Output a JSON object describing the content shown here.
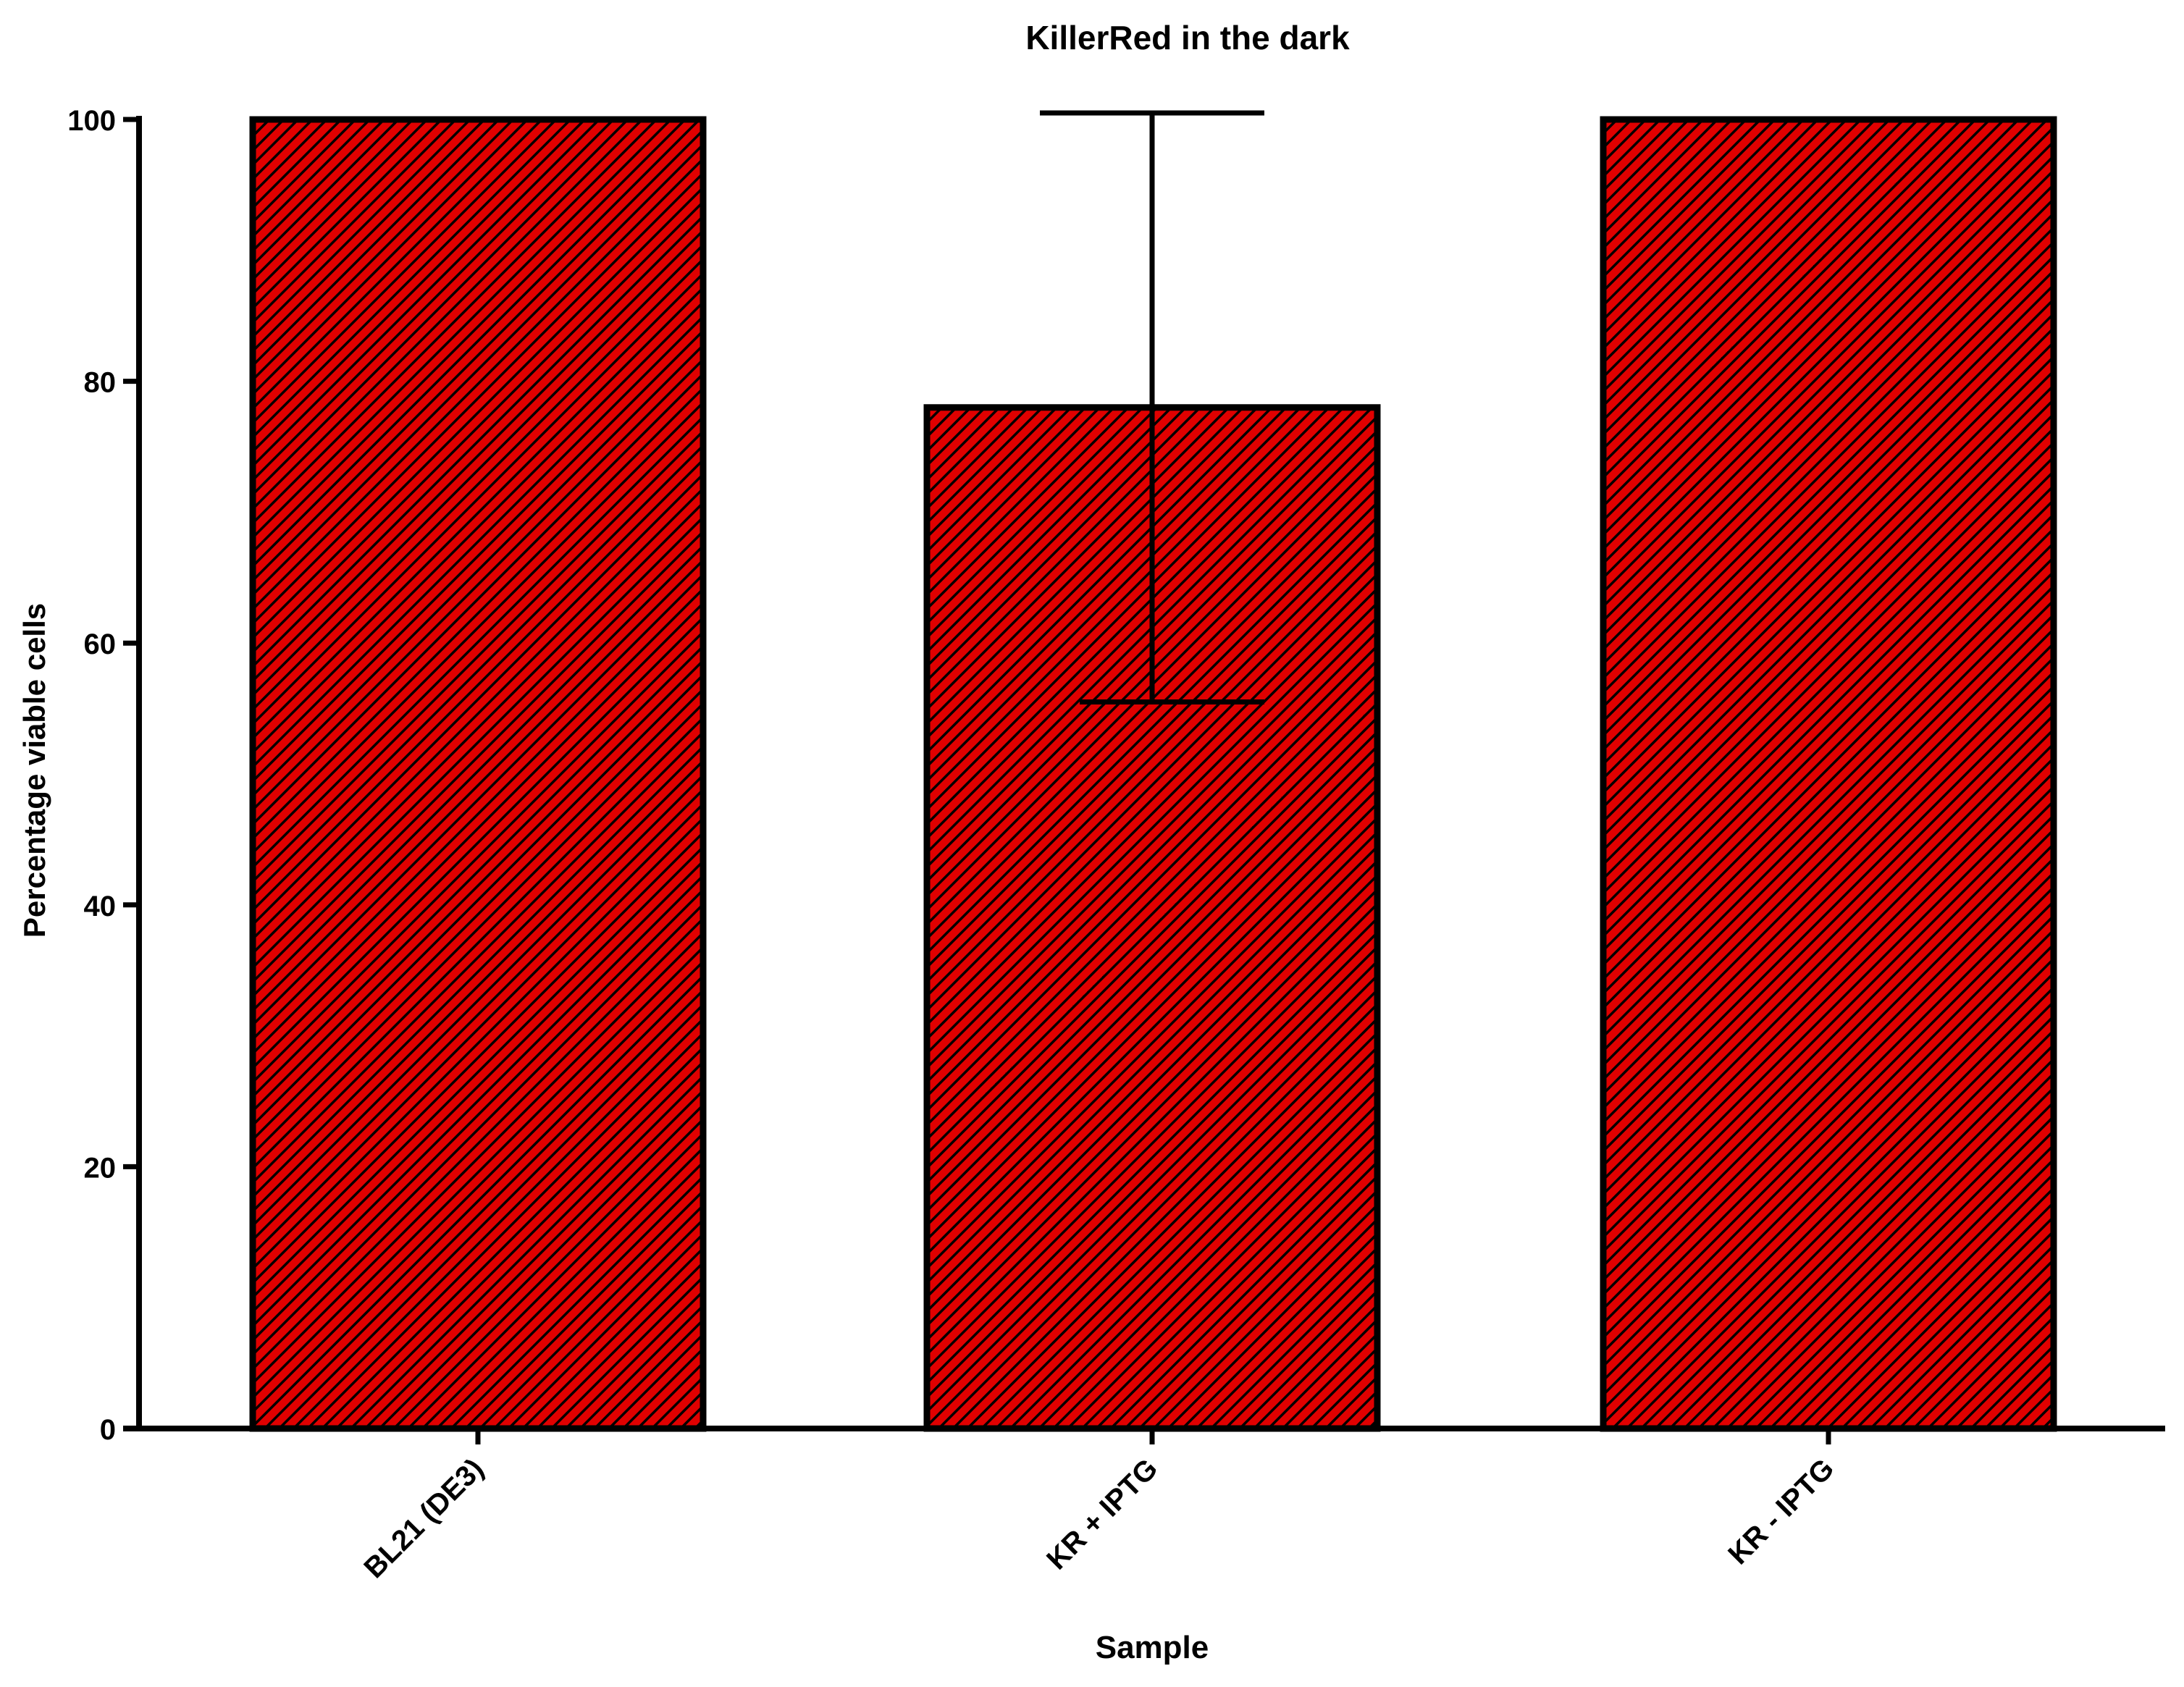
{
  "chart_data": {
    "type": "bar",
    "title": "KillerRed in the dark",
    "xlabel": "Sample",
    "ylabel": "Percentage viable cells",
    "categories": [
      "BL21 (DE3)",
      "KR + IPTG",
      "KR - IPTG"
    ],
    "values": [
      100,
      78,
      100
    ],
    "error_bars": [
      null,
      22.5,
      null
    ],
    "ylim": [
      0,
      100
    ],
    "yticks": [
      0,
      20,
      40,
      60,
      80,
      100
    ],
    "ytick_labels": [
      "0",
      "20",
      "40",
      "60",
      "80",
      "100"
    ],
    "grid": false,
    "legend": "none",
    "bar_fill": "#e00000",
    "hatch_color": "#000000",
    "hatch_style": "diagonal",
    "edge_color": "#000000"
  }
}
